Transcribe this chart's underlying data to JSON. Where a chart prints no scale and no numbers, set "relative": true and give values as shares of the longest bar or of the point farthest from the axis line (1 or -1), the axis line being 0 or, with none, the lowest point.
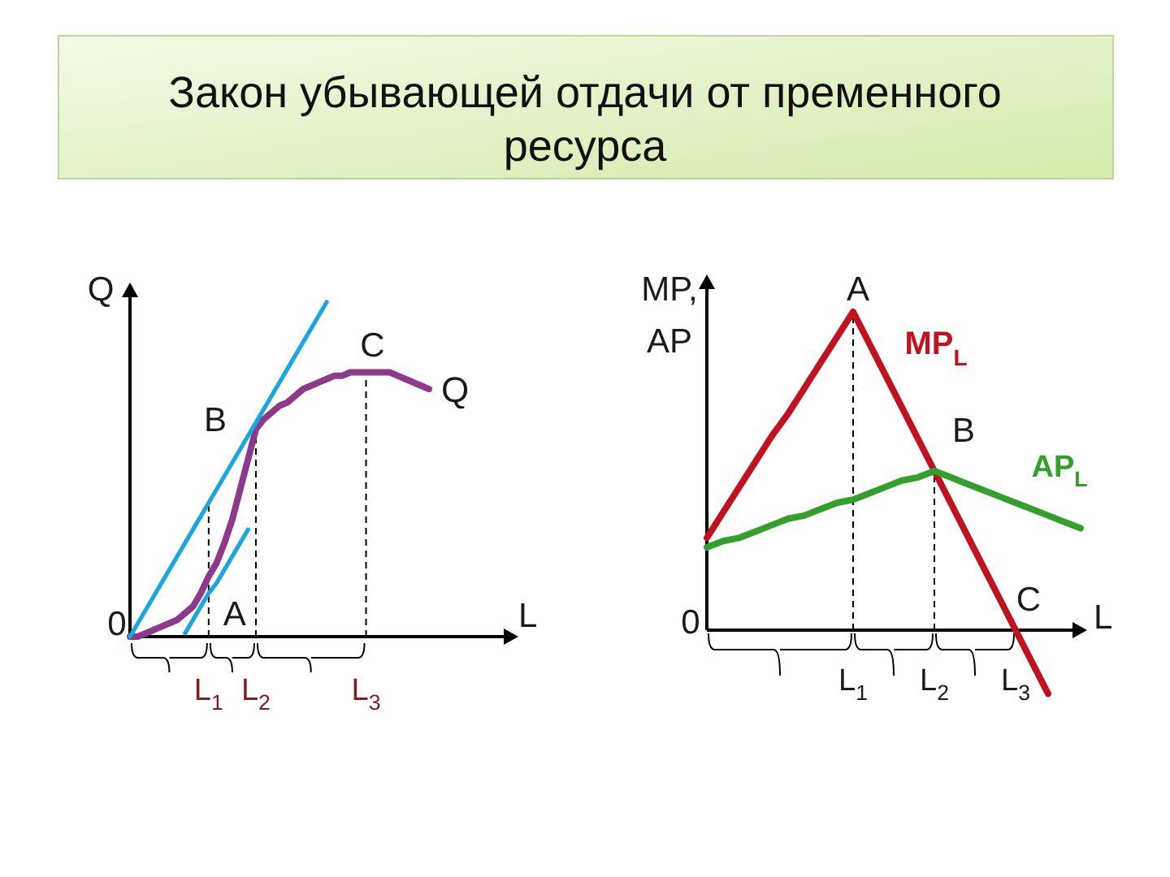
{
  "chart_data": [
    {
      "type": "line",
      "title": "Закон убывающей отдачи от пременного ресурса",
      "xlabel": "L",
      "ylabel": "Q",
      "relative": true,
      "categories": [
        null,
        null,
        null,
        null,
        null,
        null,
        null,
        null,
        null,
        null,
        "L$_{1}$",
        null,
        null,
        null,
        null,
        null,
        "L$_{2}$",
        null,
        null,
        null,
        null,
        null,
        null,
        null,
        null,
        null,
        null,
        null,
        null,
        null,
        "L$_{3}$",
        null,
        null,
        null,
        null,
        null,
        null,
        null,
        null
      ],
      "series": [
        {
          "name": "Q",
          "color": "#8e3a8c",
          "values": [
            0,
            0,
            0.01,
            0.02,
            0.03,
            0.04,
            0.05,
            0.07,
            0.09,
            0.13,
            0.18,
            0.22,
            0.28,
            0.35,
            0.44,
            0.53,
            0.62,
            0.65,
            0.67,
            0.69,
            0.7,
            0.72,
            0.74,
            0.75,
            0.76,
            0.77,
            0.78,
            0.78,
            0.79,
            0.79,
            0.79,
            0.79,
            0.79,
            0.79,
            0.78,
            0.77,
            0.76,
            0.75,
            0.74
          ]
        },
        {
          "color": "#1ba6df",
          "values": [
            0,
            0.04,
            0.08,
            0.12,
            0.16,
            0.2,
            0.24,
            0.28,
            0.32,
            0.36,
            0.4,
            0.44,
            0.48,
            0.52,
            0.56,
            0.6,
            0.64,
            0.68,
            0.72,
            0.76,
            0.8,
            0.84,
            0.88,
            0.92,
            0.96,
            1,
            null,
            null,
            null,
            null,
            null,
            null,
            null,
            null,
            null,
            null,
            null,
            null,
            null
          ]
        },
        {
          "color": "#1ba6df",
          "values": [
            null,
            null,
            null,
            null,
            null,
            null,
            null,
            0.01,
            0.05,
            0.09,
            0.13,
            0.16,
            0.2,
            0.24,
            0.28,
            0.32,
            null,
            null,
            null,
            null,
            null,
            null,
            null,
            null,
            null,
            null,
            null,
            null,
            null,
            null,
            null,
            null,
            null,
            null,
            null,
            null,
            null,
            null,
            null
          ]
        }
      ],
      "ref_lines": [
        {
          "axis": "x",
          "value": "L$_{1}$",
          "line_style": "dashed"
        },
        {
          "axis": "x",
          "value": "L$_{2}$",
          "line_style": "dashed"
        },
        {
          "axis": "x",
          "value": "L$_{3}$",
          "line_style": "dashed"
        }
      ],
      "annotations": [
        "0",
        {
          "text": "A",
          "x": "L$_{1}$",
          "y": 0.18
        },
        {
          "text": "B",
          "x": "L$_{2}$",
          "y": 0.62
        },
        {
          "text": "C",
          "x": "L$_{3}$",
          "y": 0.79
        }
      ]
    },
    {
      "type": "line",
      "xlabel": "L",
      "ylabel": "MP, AP",
      "relative": true,
      "categories": [
        null,
        null,
        null,
        null,
        null,
        null,
        null,
        null,
        null,
        "L$_{1}$",
        null,
        null,
        null,
        null,
        "L$_{2}$",
        null,
        null,
        null,
        null,
        "L$_{3}$",
        null,
        null,
        null,
        null
      ],
      "series": [
        {
          "name": "MP$_{L}$",
          "color": "#c1121f",
          "values": [
            0.29,
            0.37,
            0.45,
            0.53,
            0.61,
            0.68,
            0.76,
            0.84,
            0.92,
            1,
            0.9,
            0.8,
            0.7,
            0.6,
            0.5,
            0.4,
            0.3,
            0.2,
            0.1,
            0,
            -0.1,
            -0.2,
            null,
            null
          ]
        },
        {
          "name": "AP$_{L}$",
          "color": "#33a02c",
          "values": [
            0.26,
            0.28,
            0.29,
            0.31,
            0.33,
            0.35,
            0.36,
            0.38,
            0.4,
            0.41,
            0.43,
            0.45,
            0.47,
            0.48,
            0.5,
            0.48,
            0.46,
            0.44,
            0.42,
            0.4,
            0.38,
            0.36,
            0.34,
            0.32
          ]
        }
      ],
      "ref_lines": [
        {
          "axis": "x",
          "value": "L$_{1}$",
          "line_style": "dashed"
        },
        {
          "axis": "x",
          "value": "L$_{2}$",
          "line_style": "dashed"
        }
      ],
      "annotations": [
        "0",
        {
          "text": "A",
          "x": "L$_{1}$",
          "y": 1
        },
        {
          "text": "B",
          "x": "L$_{2}$",
          "y": 0.5
        },
        {
          "text": "C",
          "x": "L$_{3}$",
          "y": 0
        }
      ]
    }
  ]
}
